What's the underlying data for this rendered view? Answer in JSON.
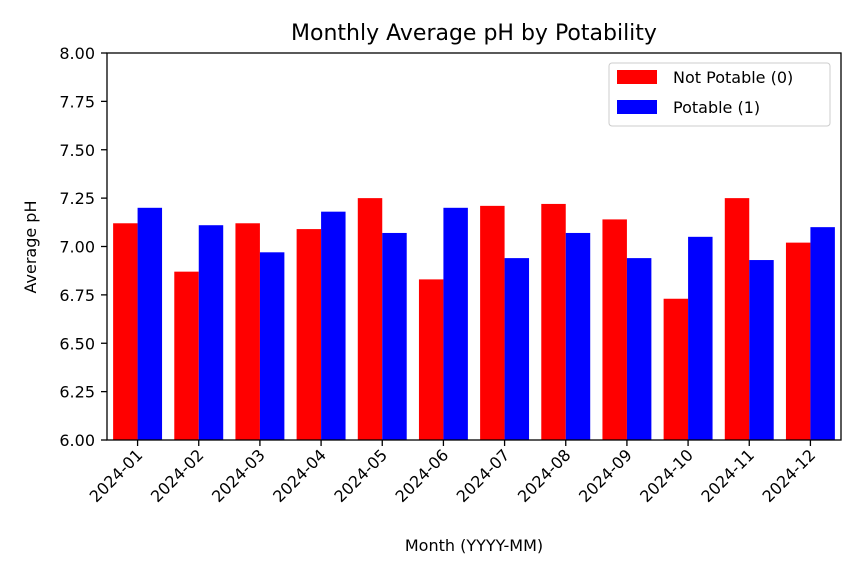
{
  "chart_data": {
    "type": "bar",
    "title": "Monthly Average pH by Potability",
    "xlabel": "Month (YYYY-MM)",
    "ylabel": "Average pH",
    "ylim": [
      6.0,
      8.0
    ],
    "yticks": [
      "6.00",
      "6.25",
      "6.50",
      "6.75",
      "7.00",
      "7.25",
      "7.50",
      "7.75",
      "8.00"
    ],
    "categories": [
      "2024-01",
      "2024-02",
      "2024-03",
      "2024-04",
      "2024-05",
      "2024-06",
      "2024-07",
      "2024-08",
      "2024-09",
      "2024-10",
      "2024-11",
      "2024-12"
    ],
    "series": [
      {
        "name": "Not Potable (0)",
        "color": "#ff0000",
        "values": [
          7.12,
          6.87,
          7.12,
          7.09,
          7.25,
          6.83,
          7.21,
          7.22,
          7.14,
          6.73,
          7.25,
          7.02
        ]
      },
      {
        "name": "Potable (1)",
        "color": "#0000ff",
        "values": [
          7.2,
          7.11,
          6.97,
          7.18,
          7.07,
          7.2,
          6.94,
          7.07,
          6.94,
          7.05,
          6.93,
          7.1
        ]
      }
    ],
    "grid": false,
    "legend_position": "top-right"
  }
}
